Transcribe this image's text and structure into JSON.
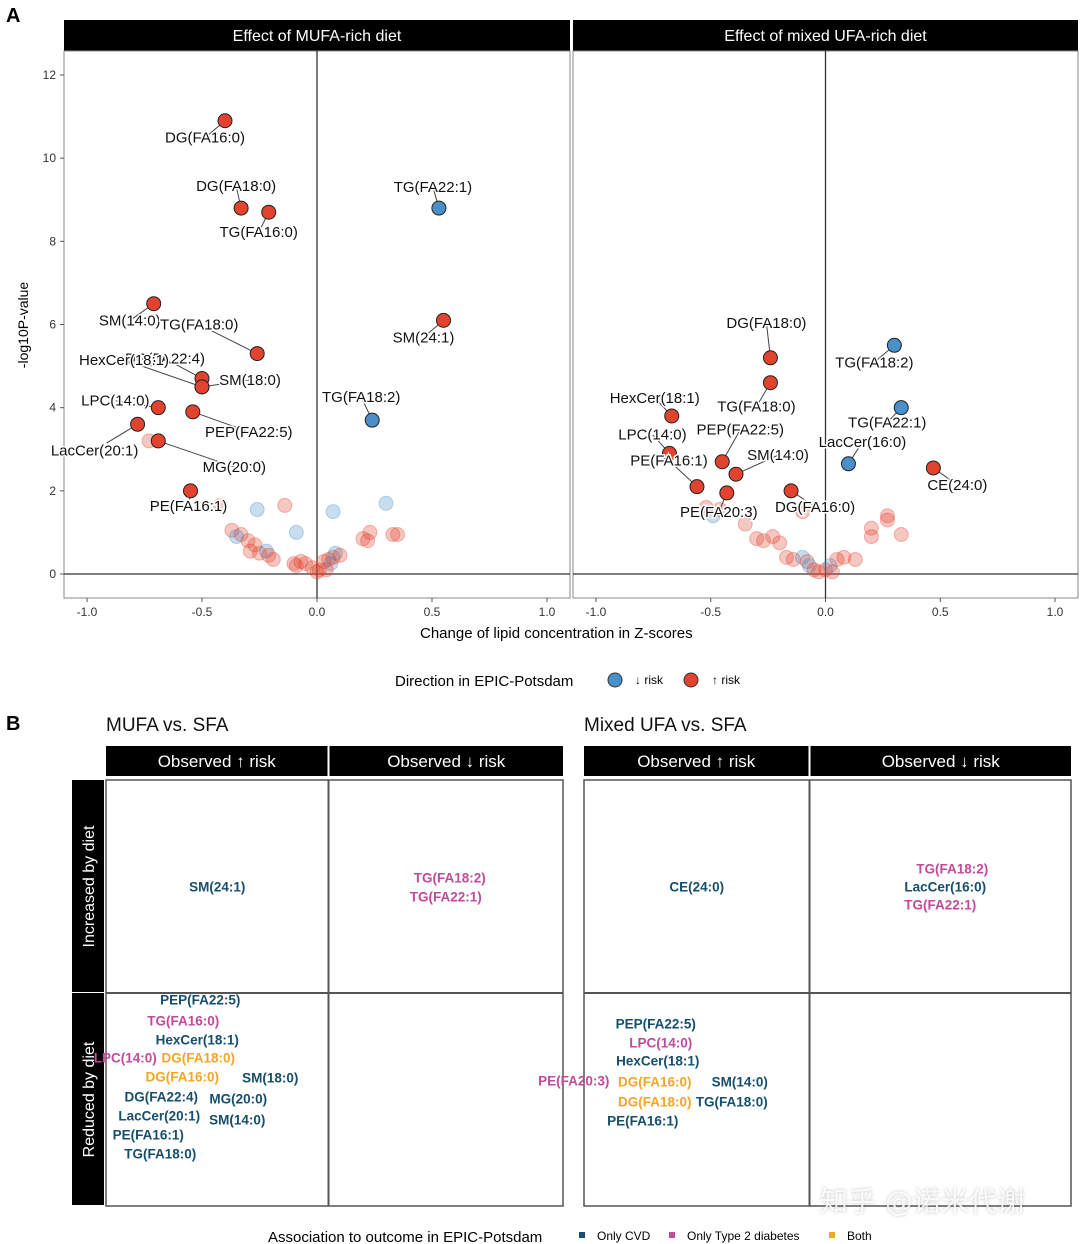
{
  "panel_a": {
    "letter": "A",
    "ylabel": "-log10P-value",
    "xlabel": "Change of lipid concentration in Z-scores",
    "legend_title": "Direction in EPIC-Potsdam",
    "legend_items": [
      {
        "label": "↓ risk",
        "color": "#4a8fc7"
      },
      {
        "label": "↑ risk",
        "color": "#e2432f"
      }
    ]
  },
  "panel_b": {
    "letter": "B",
    "row_labels": [
      "Increased by diet",
      "Reduced by diet"
    ],
    "col_labels": [
      "Observed ↑ risk",
      "Observed ↓ risk"
    ],
    "legend_title": "Association to outcome in EPIC-Potsdam",
    "legend_items": [
      {
        "label": "Only CVD",
        "color": "#164f6e"
      },
      {
        "label": "Only Type 2 diabetes",
        "color": "#c24a9a"
      },
      {
        "label": "Both",
        "color": "#f4a623"
      }
    ]
  },
  "watermark": "知乎 @诺米代谢",
  "chart_data": [
    {
      "type": "scatter",
      "title": "Effect of MUFA-rich diet",
      "xlabel": "Change of lipid concentration in Z-scores",
      "ylabel": "-log10P-value",
      "xlim": [
        -1.0,
        1.0
      ],
      "ylim": [
        0,
        12
      ],
      "xticks": [
        "-1.0",
        "-0.5",
        "0.0",
        "0.5",
        "1.0"
      ],
      "yticks": [
        "0",
        "2",
        "4",
        "6",
        "8",
        "10",
        "12"
      ],
      "labeled_points": [
        {
          "name": "DG(FA16:0)",
          "x": -0.4,
          "y": 10.9,
          "dir": "up"
        },
        {
          "name": "DG(FA18:0)",
          "x": -0.33,
          "y": 8.8,
          "dir": "up"
        },
        {
          "name": "TG(FA16:0)",
          "x": -0.21,
          "y": 8.7,
          "dir": "up"
        },
        {
          "name": "TG(FA22:1)",
          "x": 0.53,
          "y": 8.8,
          "dir": "down"
        },
        {
          "name": "SM(14:0)",
          "x": -0.71,
          "y": 6.5,
          "dir": "up"
        },
        {
          "name": "SM(24:1)",
          "x": 0.55,
          "y": 6.1,
          "dir": "up"
        },
        {
          "name": "TG(FA18:0)",
          "x": -0.26,
          "y": 5.3,
          "dir": "up"
        },
        {
          "name": "DG(FA22:4)",
          "x": -0.5,
          "y": 4.7,
          "dir": "up"
        },
        {
          "name": "HexCer(18:1)",
          "x": -0.5,
          "y": 4.5,
          "dir": "up"
        },
        {
          "name": "SM(18:0)",
          "x": -0.5,
          "y": 4.5,
          "dir": "up"
        },
        {
          "name": "TG(FA18:2)",
          "x": 0.24,
          "y": 3.7,
          "dir": "down"
        },
        {
          "name": "LPC(14:0)",
          "x": -0.69,
          "y": 4.0,
          "dir": "up"
        },
        {
          "name": "PEP(FA22:5)",
          "x": -0.54,
          "y": 3.9,
          "dir": "up"
        },
        {
          "name": "LacCer(20:1)",
          "x": -0.78,
          "y": 3.6,
          "dir": "up"
        },
        {
          "name": "MG(20:0)",
          "x": -0.69,
          "y": 3.2,
          "dir": "up"
        },
        {
          "name": "PE(FA16:1)",
          "x": -0.55,
          "y": 2.0,
          "dir": "up"
        }
      ],
      "faded_points": [
        {
          "x": -0.73,
          "y": 3.2,
          "dir": "up"
        },
        {
          "x": -0.42,
          "y": 1.65,
          "dir": "up"
        },
        {
          "x": -0.26,
          "y": 1.55,
          "dir": "down"
        },
        {
          "x": -0.14,
          "y": 1.65,
          "dir": "up"
        },
        {
          "x": -0.37,
          "y": 1.05,
          "dir": "up"
        },
        {
          "x": -0.33,
          "y": 0.95,
          "dir": "up"
        },
        {
          "x": -0.3,
          "y": 0.8,
          "dir": "up"
        },
        {
          "x": -0.29,
          "y": 0.55,
          "dir": "up"
        },
        {
          "x": -0.27,
          "y": 0.7,
          "dir": "up"
        },
        {
          "x": -0.25,
          "y": 0.5,
          "dir": "up"
        },
        {
          "x": -0.22,
          "y": 0.55,
          "dir": "down"
        },
        {
          "x": -0.21,
          "y": 0.45,
          "dir": "up"
        },
        {
          "x": -0.19,
          "y": 0.35,
          "dir": "up"
        },
        {
          "x": -0.35,
          "y": 0.9,
          "dir": "down"
        },
        {
          "x": -0.1,
          "y": 0.25,
          "dir": "up"
        },
        {
          "x": -0.09,
          "y": 0.2,
          "dir": "up"
        },
        {
          "x": -0.07,
          "y": 0.3,
          "dir": "up"
        },
        {
          "x": -0.05,
          "y": 0.25,
          "dir": "up"
        },
        {
          "x": -0.02,
          "y": 0.15,
          "dir": "up"
        },
        {
          "x": 0.0,
          "y": 0.05,
          "dir": "up"
        },
        {
          "x": 0.01,
          "y": 0.1,
          "dir": "up"
        },
        {
          "x": 0.03,
          "y": 0.3,
          "dir": "up"
        },
        {
          "x": 0.05,
          "y": 0.35,
          "dir": "up"
        },
        {
          "x": 0.06,
          "y": 0.25,
          "dir": "down"
        },
        {
          "x": 0.07,
          "y": 0.4,
          "dir": "up"
        },
        {
          "x": 0.08,
          "y": 0.5,
          "dir": "down"
        },
        {
          "x": 0.1,
          "y": 0.45,
          "dir": "up"
        },
        {
          "x": -0.09,
          "y": 1.0,
          "dir": "down"
        },
        {
          "x": 0.07,
          "y": 1.5,
          "dir": "down"
        },
        {
          "x": 0.2,
          "y": 0.85,
          "dir": "up"
        },
        {
          "x": 0.22,
          "y": 0.8,
          "dir": "up"
        },
        {
          "x": 0.23,
          "y": 1.0,
          "dir": "up"
        },
        {
          "x": 0.3,
          "y": 1.7,
          "dir": "down"
        },
        {
          "x": 0.33,
          "y": 0.95,
          "dir": "up"
        },
        {
          "x": 0.35,
          "y": 0.95,
          "dir": "up"
        },
        {
          "x": 0.04,
          "y": 0.1,
          "dir": "up"
        }
      ]
    },
    {
      "type": "scatter",
      "title": "Effect of mixed UFA-rich diet",
      "xlabel": "Change of lipid concentration in Z-scores",
      "ylabel": "-log10P-value",
      "xlim": [
        -1.0,
        1.0
      ],
      "ylim": [
        0,
        12
      ],
      "xticks": [
        "-1.0",
        "-0.5",
        "0.0",
        "0.5",
        "1.0"
      ],
      "labeled_points": [
        {
          "name": "DG(FA18:0)",
          "x": -0.24,
          "y": 5.2,
          "dir": "up"
        },
        {
          "name": "TG(FA18:2)",
          "x": 0.3,
          "y": 5.5,
          "dir": "down"
        },
        {
          "name": "TG(FA18:0)",
          "x": -0.24,
          "y": 4.6,
          "dir": "up"
        },
        {
          "name": "HexCer(18:1)",
          "x": -0.67,
          "y": 3.8,
          "dir": "up"
        },
        {
          "name": "TG(FA22:1)",
          "x": 0.33,
          "y": 4.0,
          "dir": "down"
        },
        {
          "name": "LPC(14:0)",
          "x": -0.68,
          "y": 2.9,
          "dir": "up"
        },
        {
          "name": "PEP(FA22:5)",
          "x": -0.45,
          "y": 2.7,
          "dir": "up"
        },
        {
          "name": "LacCer(16:0)",
          "x": 0.1,
          "y": 2.65,
          "dir": "down"
        },
        {
          "name": "CE(24:0)",
          "x": 0.47,
          "y": 2.55,
          "dir": "up"
        },
        {
          "name": "SM(14:0)",
          "x": -0.39,
          "y": 2.4,
          "dir": "up"
        },
        {
          "name": "PE(FA16:1)",
          "x": -0.56,
          "y": 2.1,
          "dir": "up"
        },
        {
          "name": "PE(FA20:3)",
          "x": -0.43,
          "y": 1.95,
          "dir": "up"
        },
        {
          "name": "DG(FA16:0)",
          "x": -0.15,
          "y": 2.0,
          "dir": "up"
        }
      ],
      "faded_points": [
        {
          "x": -0.52,
          "y": 1.6,
          "dir": "up"
        },
        {
          "x": -0.49,
          "y": 1.4,
          "dir": "down"
        },
        {
          "x": -0.46,
          "y": 1.55,
          "dir": "up"
        },
        {
          "x": -0.35,
          "y": 1.2,
          "dir": "up"
        },
        {
          "x": -0.3,
          "y": 0.85,
          "dir": "up"
        },
        {
          "x": -0.27,
          "y": 0.8,
          "dir": "up"
        },
        {
          "x": -0.23,
          "y": 0.9,
          "dir": "up"
        },
        {
          "x": -0.2,
          "y": 0.75,
          "dir": "up"
        },
        {
          "x": -0.17,
          "y": 0.4,
          "dir": "up"
        },
        {
          "x": -0.14,
          "y": 0.35,
          "dir": "up"
        },
        {
          "x": -0.1,
          "y": 1.5,
          "dir": "up"
        },
        {
          "x": -0.1,
          "y": 0.4,
          "dir": "down"
        },
        {
          "x": -0.08,
          "y": 0.3,
          "dir": "up"
        },
        {
          "x": -0.07,
          "y": 0.2,
          "dir": "down"
        },
        {
          "x": -0.05,
          "y": 0.1,
          "dir": "up"
        },
        {
          "x": -0.03,
          "y": 0.05,
          "dir": "up"
        },
        {
          "x": 0.0,
          "y": 0.1,
          "dir": "up"
        },
        {
          "x": 0.02,
          "y": 0.2,
          "dir": "down"
        },
        {
          "x": 0.03,
          "y": 0.05,
          "dir": "up"
        },
        {
          "x": 0.05,
          "y": 0.35,
          "dir": "up"
        },
        {
          "x": 0.08,
          "y": 0.4,
          "dir": "up"
        },
        {
          "x": 0.13,
          "y": 0.35,
          "dir": "up"
        },
        {
          "x": 0.2,
          "y": 1.1,
          "dir": "up"
        },
        {
          "x": 0.2,
          "y": 0.9,
          "dir": "up"
        },
        {
          "x": 0.27,
          "y": 1.4,
          "dir": "up"
        },
        {
          "x": 0.27,
          "y": 1.3,
          "dir": "up"
        },
        {
          "x": 0.33,
          "y": 0.95,
          "dir": "up"
        }
      ]
    },
    {
      "type": "table",
      "title": "MUFA vs. SFA",
      "rows": [
        "Increased by diet",
        "Reduced by diet"
      ],
      "columns": [
        "Observed ↑ risk",
        "Observed ↓ risk"
      ],
      "cells": [
        {
          "row": "Increased by diet",
          "column": "Observed ↑ risk",
          "lipids": [
            {
              "name": "SM(24:1)",
              "category": "Only CVD"
            }
          ]
        },
        {
          "row": "Increased by diet",
          "column": "Observed ↓ risk",
          "lipids": [
            {
              "name": "TG(FA18:2)",
              "category": "Only Type 2 diabetes"
            },
            {
              "name": "TG(FA22:1)",
              "category": "Only Type 2 diabetes"
            }
          ]
        },
        {
          "row": "Reduced by diet",
          "column": "Observed ↑ risk",
          "lipids": [
            {
              "name": "PEP(FA22:5)",
              "category": "Only CVD"
            },
            {
              "name": "TG(FA16:0)",
              "category": "Only Type 2 diabetes"
            },
            {
              "name": "HexCer(18:1)",
              "category": "Only CVD"
            },
            {
              "name": "LPC(14:0)",
              "category": "Only Type 2 diabetes"
            },
            {
              "name": "DG(FA18:0)",
              "category": "Both"
            },
            {
              "name": "DG(FA16:0)",
              "category": "Both"
            },
            {
              "name": "SM(18:0)",
              "category": "Only CVD"
            },
            {
              "name": "DG(FA22:4)",
              "category": "Only CVD"
            },
            {
              "name": "MG(20:0)",
              "category": "Only CVD"
            },
            {
              "name": "LacCer(20:1)",
              "category": "Only CVD"
            },
            {
              "name": "SM(14:0)",
              "category": "Only CVD"
            },
            {
              "name": "PE(FA16:1)",
              "category": "Only CVD"
            },
            {
              "name": "TG(FA18:0)",
              "category": "Only CVD"
            }
          ]
        },
        {
          "row": "Reduced by diet",
          "column": "Observed ↓ risk",
          "lipids": []
        }
      ]
    },
    {
      "type": "table",
      "title": "Mixed UFA vs. SFA",
      "rows": [
        "Increased by diet",
        "Reduced by diet"
      ],
      "columns": [
        "Observed ↑ risk",
        "Observed ↓ risk"
      ],
      "cells": [
        {
          "row": "Increased by diet",
          "column": "Observed ↑ risk",
          "lipids": [
            {
              "name": "CE(24:0)",
              "category": "Only CVD"
            }
          ]
        },
        {
          "row": "Increased by diet",
          "column": "Observed ↓ risk",
          "lipids": [
            {
              "name": "TG(FA18:2)",
              "category": "Only Type 2 diabetes"
            },
            {
              "name": "LacCer(16:0)",
              "category": "Only CVD"
            },
            {
              "name": "TG(FA22:1)",
              "category": "Only Type 2 diabetes"
            }
          ]
        },
        {
          "row": "Reduced by diet",
          "column": "Observed ↑ risk",
          "lipids": [
            {
              "name": "PEP(FA22:5)",
              "category": "Only CVD"
            },
            {
              "name": "LPC(14:0)",
              "category": "Only Type 2 diabetes"
            },
            {
              "name": "HexCer(18:1)",
              "category": "Only CVD"
            },
            {
              "name": "PE(FA20:3)",
              "category": "Only Type 2 diabetes"
            },
            {
              "name": "DG(FA16:0)",
              "category": "Both"
            },
            {
              "name": "SM(14:0)",
              "category": "Only CVD"
            },
            {
              "name": "DG(FA18:0)",
              "category": "Both"
            },
            {
              "name": "TG(FA18:0)",
              "category": "Only CVD"
            },
            {
              "name": "PE(FA16:1)",
              "category": "Only CVD"
            }
          ]
        },
        {
          "row": "Reduced by diet",
          "column": "Observed ↓ risk",
          "lipids": []
        }
      ]
    }
  ]
}
